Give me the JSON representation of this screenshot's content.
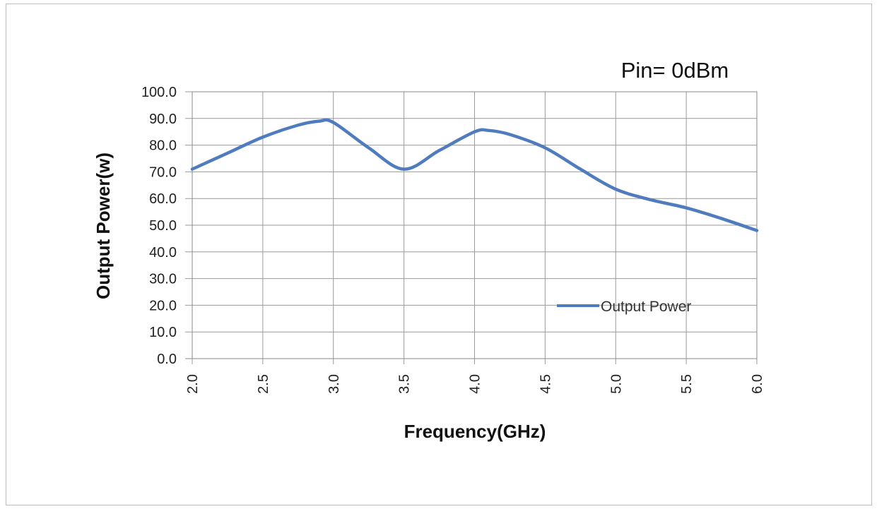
{
  "chart_data": {
    "type": "line",
    "annotation": "Pin= 0dBm",
    "xlabel": "Frequency(GHz)",
    "ylabel": "Output Power(w)",
    "x_tick_labels": [
      "2.0",
      "2.5",
      "3.0",
      "3.5",
      "4.0",
      "4.5",
      "5.0",
      "5.5",
      "6.0"
    ],
    "y_tick_labels": [
      "0.0",
      "10.0",
      "20.0",
      "30.0",
      "40.0",
      "50.0",
      "60.0",
      "70.0",
      "80.0",
      "90.0",
      "100.0"
    ],
    "xlim": [
      2.0,
      6.0
    ],
    "ylim": [
      0,
      100
    ],
    "grid": true,
    "legend_position": "right",
    "series": [
      {
        "name": "Output Power",
        "color": "#4f7bbf",
        "x": [
          2.0,
          2.25,
          2.5,
          2.75,
          2.9,
          3.0,
          3.25,
          3.5,
          3.75,
          4.0,
          4.1,
          4.25,
          4.5,
          4.75,
          5.0,
          5.25,
          5.5,
          5.75,
          6.0
        ],
        "y": [
          71.0,
          77.0,
          83.0,
          87.5,
          89.0,
          88.5,
          79.0,
          71.0,
          78.0,
          85.0,
          85.5,
          84.0,
          79.0,
          71.0,
          63.5,
          59.5,
          56.5,
          52.5,
          48.0
        ]
      }
    ]
  }
}
